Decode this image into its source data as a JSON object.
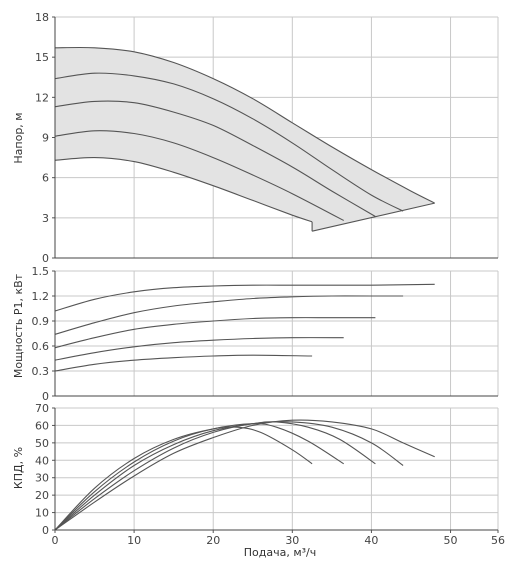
{
  "chart_data": [
    {
      "id": "head",
      "type": "area",
      "ylabel": "Напор, м",
      "xlim": [
        0,
        56
      ],
      "ylim": [
        0,
        18
      ],
      "yticks": [
        "0",
        "3",
        "6",
        "9",
        "12",
        "15",
        "18"
      ],
      "grid": true,
      "envelope_fill": "#e3e3e3",
      "series": [
        {
          "values": [
            [
              0,
              7.3
            ],
            [
              5,
              7.5
            ],
            [
              10,
              7.2
            ],
            [
              15,
              6.4
            ],
            [
              20,
              5.4
            ],
            [
              25,
              4.3
            ],
            [
              30,
              3.2
            ],
            [
              32.5,
              2.7
            ]
          ]
        },
        {
          "values": [
            [
              0,
              9.1
            ],
            [
              5,
              9.5
            ],
            [
              10,
              9.3
            ],
            [
              15,
              8.6
            ],
            [
              20,
              7.5
            ],
            [
              25,
              6.2
            ],
            [
              30,
              4.8
            ],
            [
              36.5,
              2.8
            ]
          ]
        },
        {
          "values": [
            [
              0,
              11.3
            ],
            [
              5,
              11.7
            ],
            [
              10,
              11.6
            ],
            [
              15,
              10.9
            ],
            [
              20,
              9.9
            ],
            [
              25,
              8.4
            ],
            [
              30,
              6.8
            ],
            [
              35,
              5.0
            ],
            [
              40.5,
              3.1
            ]
          ]
        },
        {
          "values": [
            [
              0,
              13.4
            ],
            [
              5,
              13.8
            ],
            [
              10,
              13.6
            ],
            [
              15,
              13.0
            ],
            [
              20,
              11.9
            ],
            [
              25,
              10.4
            ],
            [
              30,
              8.6
            ],
            [
              35,
              6.6
            ],
            [
              40,
              4.7
            ],
            [
              44,
              3.5
            ]
          ]
        },
        {
          "values": [
            [
              0,
              15.7
            ],
            [
              5,
              15.7
            ],
            [
              10,
              15.4
            ],
            [
              15,
              14.6
            ],
            [
              20,
              13.4
            ],
            [
              25,
              11.9
            ],
            [
              30,
              10.1
            ],
            [
              35,
              8.3
            ],
            [
              40,
              6.6
            ],
            [
              45,
              5.0
            ],
            [
              48,
              4.1
            ]
          ]
        }
      ],
      "min_flow_line": [
        [
          32.5,
          2.0
        ],
        [
          48,
          4.1
        ]
      ]
    },
    {
      "id": "power",
      "type": "line",
      "ylabel": "Мощность P1, кВт",
      "xlim": [
        0,
        56
      ],
      "ylim": [
        0,
        1.5
      ],
      "yticks": [
        "0",
        "0.3",
        "0.6",
        "0.9",
        "1.2",
        "1.5"
      ],
      "grid": true,
      "series": [
        {
          "values": [
            [
              0,
              0.3
            ],
            [
              5,
              0.38
            ],
            [
              10,
              0.43
            ],
            [
              15,
              0.46
            ],
            [
              20,
              0.48
            ],
            [
              25,
              0.49
            ],
            [
              32.5,
              0.48
            ]
          ]
        },
        {
          "values": [
            [
              0,
              0.43
            ],
            [
              5,
              0.52
            ],
            [
              10,
              0.59
            ],
            [
              15,
              0.64
            ],
            [
              20,
              0.67
            ],
            [
              25,
              0.69
            ],
            [
              30,
              0.7
            ],
            [
              36.5,
              0.7
            ]
          ]
        },
        {
          "values": [
            [
              0,
              0.58
            ],
            [
              5,
              0.7
            ],
            [
              10,
              0.8
            ],
            [
              15,
              0.86
            ],
            [
              20,
              0.9
            ],
            [
              25,
              0.93
            ],
            [
              30,
              0.94
            ],
            [
              35,
              0.94
            ],
            [
              40.5,
              0.94
            ]
          ]
        },
        {
          "values": [
            [
              0,
              0.74
            ],
            [
              5,
              0.88
            ],
            [
              10,
              1.0
            ],
            [
              15,
              1.08
            ],
            [
              20,
              1.13
            ],
            [
              25,
              1.17
            ],
            [
              30,
              1.19
            ],
            [
              35,
              1.2
            ],
            [
              40,
              1.2
            ],
            [
              44,
              1.2
            ]
          ]
        },
        {
          "values": [
            [
              0,
              1.02
            ],
            [
              5,
              1.16
            ],
            [
              10,
              1.25
            ],
            [
              15,
              1.3
            ],
            [
              20,
              1.32
            ],
            [
              25,
              1.33
            ],
            [
              30,
              1.33
            ],
            [
              35,
              1.33
            ],
            [
              40,
              1.33
            ],
            [
              48,
              1.34
            ]
          ]
        }
      ]
    },
    {
      "id": "efficiency",
      "type": "line",
      "ylabel": "КПД, %",
      "xlabel": "Подача, м³/ч",
      "xlim": [
        0,
        56
      ],
      "ylim": [
        0,
        70
      ],
      "xticks": [
        "0",
        "10",
        "20",
        "30",
        "40",
        "50",
        "56"
      ],
      "yticks": [
        "0",
        "10",
        "20",
        "30",
        "40",
        "50",
        "60",
        "70"
      ],
      "grid": true,
      "series": [
        {
          "values": [
            [
              0,
              0
            ],
            [
              5,
              24
            ],
            [
              10,
              41
            ],
            [
              15,
              52
            ],
            [
              20,
              58
            ],
            [
              23,
              59
            ],
            [
              26,
              56
            ],
            [
              30,
              46
            ],
            [
              32.5,
              38
            ]
          ]
        },
        {
          "values": [
            [
              0,
              0
            ],
            [
              5,
              22
            ],
            [
              10,
              39
            ],
            [
              15,
              51
            ],
            [
              20,
              58
            ],
            [
              25,
              61
            ],
            [
              28,
              59
            ],
            [
              32,
              51
            ],
            [
              36.5,
              38
            ]
          ]
        },
        {
          "values": [
            [
              0,
              0
            ],
            [
              5,
              20
            ],
            [
              10,
              37
            ],
            [
              15,
              49
            ],
            [
              20,
              57
            ],
            [
              25,
              61
            ],
            [
              28,
              62
            ],
            [
              32,
              59
            ],
            [
              36,
              52
            ],
            [
              40.5,
              38
            ]
          ]
        },
        {
          "values": [
            [
              0,
              0
            ],
            [
              5,
              18
            ],
            [
              10,
              34
            ],
            [
              15,
              47
            ],
            [
              20,
              56
            ],
            [
              25,
              61
            ],
            [
              30,
              62
            ],
            [
              35,
              59
            ],
            [
              40,
              50
            ],
            [
              44,
              37
            ]
          ]
        },
        {
          "values": [
            [
              0,
              0
            ],
            [
              5,
              16
            ],
            [
              10,
              31
            ],
            [
              15,
              44
            ],
            [
              20,
              53
            ],
            [
              25,
              60
            ],
            [
              30,
              63
            ],
            [
              35,
              62
            ],
            [
              40,
              58
            ],
            [
              44,
              50
            ],
            [
              48,
              42
            ]
          ]
        }
      ]
    }
  ]
}
